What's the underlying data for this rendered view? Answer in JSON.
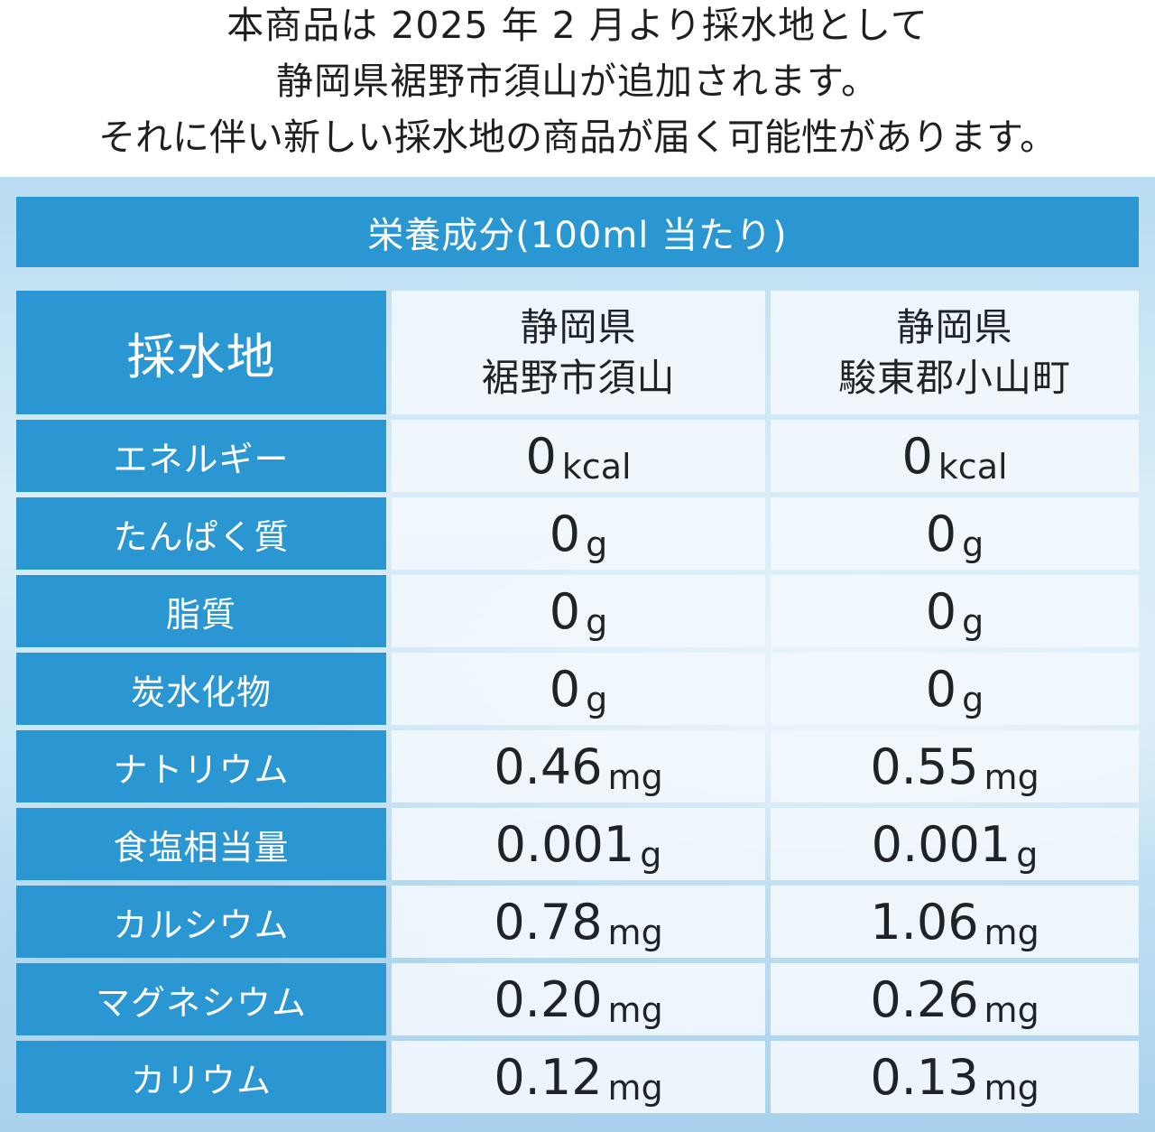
{
  "notice": {
    "line1": "本商品は 2025 年 2 月より採水地として",
    "line2": "静岡県裾野市須山が追加されます。",
    "line3": "それに伴い新しい採水地の商品が届く可能性があります。"
  },
  "table": {
    "title": "栄養成分(100ml 当たり)",
    "header": {
      "label": "採水地",
      "col1_line1": "静岡県",
      "col1_line2": "裾野市須山",
      "col2_line1": "静岡県",
      "col2_line2": "駿東郡小山町"
    },
    "rows": [
      {
        "label": "エネルギー",
        "v1": "0",
        "u1": "kcal",
        "v2": "0",
        "u2": "kcal"
      },
      {
        "label": "たんぱく質",
        "v1": "0",
        "u1": "g",
        "v2": "0",
        "u2": "g"
      },
      {
        "label": "脂質",
        "v1": "0",
        "u1": "g",
        "v2": "0",
        "u2": "g"
      },
      {
        "label": "炭水化物",
        "v1": "0",
        "u1": "g",
        "v2": "0",
        "u2": "g"
      },
      {
        "label": "ナトリウム",
        "v1": "0.46",
        "u1": "mg",
        "v2": "0.55",
        "u2": "mg"
      },
      {
        "label": "食塩相当量",
        "v1": "0.001",
        "u1": "g",
        "v2": "0.001",
        "u2": "g"
      },
      {
        "label": "カルシウム",
        "v1": "0.78",
        "u1": "mg",
        "v2": "1.06",
        "u2": "mg"
      },
      {
        "label": "マグネシウム",
        "v1": "0.20",
        "u1": "mg",
        "v2": "0.26",
        "u2": "mg"
      },
      {
        "label": "カリウム",
        "v1": "0.12",
        "u1": "mg",
        "v2": "0.13",
        "u2": "mg"
      }
    ]
  },
  "colors": {
    "accent_blue": "#2a97d2",
    "text_dark": "#1f2328"
  }
}
